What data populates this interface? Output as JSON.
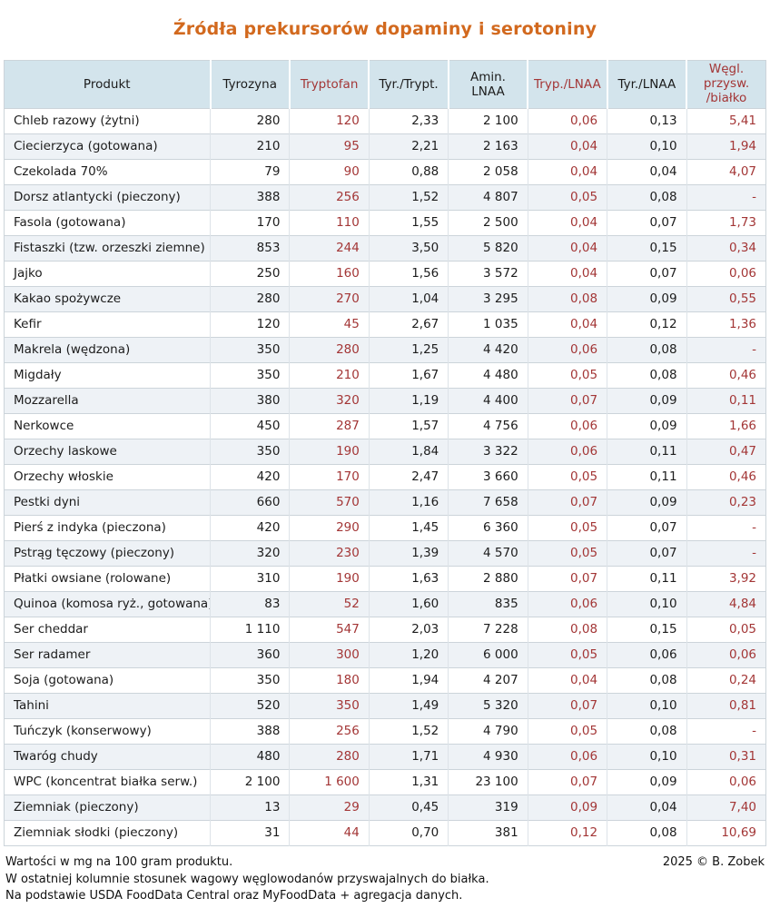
{
  "title": "Źródła prekursorów dopaminy i serotoniny",
  "chart_data": {
    "type": "table",
    "title": "Źródła prekursorów dopaminy i serotoniny",
    "columns": [
      "Produkt",
      "Tyrozyna",
      "Tryptofan",
      "Tyr./Trypt.",
      "Amin. LNAA",
      "Tryp./LNAA",
      "Tyr./LNAA",
      "Węgl.\nprzysw.\n/białko"
    ],
    "red_column_indices": [
      2,
      5,
      7
    ],
    "units_note": "mg na 100 g produktu",
    "rows": [
      [
        "Chleb razowy (żytni)",
        "280",
        "120",
        "2,33",
        "2 100",
        "0,06",
        "0,13",
        "5,41"
      ],
      [
        "Ciecierzyca (gotowana)",
        "210",
        "95",
        "2,21",
        "2 163",
        "0,04",
        "0,10",
        "1,94"
      ],
      [
        "Czekolada 70%",
        "79",
        "90",
        "0,88",
        "2 058",
        "0,04",
        "0,04",
        "4,07"
      ],
      [
        "Dorsz atlantycki (pieczony)",
        "388",
        "256",
        "1,52",
        "4 807",
        "0,05",
        "0,08",
        "-"
      ],
      [
        "Fasola (gotowana)",
        "170",
        "110",
        "1,55",
        "2 500",
        "0,04",
        "0,07",
        "1,73"
      ],
      [
        "Fistaszki (tzw. orzeszki ziemne)",
        "853",
        "244",
        "3,50",
        "5 820",
        "0,04",
        "0,15",
        "0,34"
      ],
      [
        "Jajko",
        "250",
        "160",
        "1,56",
        "3 572",
        "0,04",
        "0,07",
        "0,06"
      ],
      [
        "Kakao spożywcze",
        "280",
        "270",
        "1,04",
        "3 295",
        "0,08",
        "0,09",
        "0,55"
      ],
      [
        "Kefir",
        "120",
        "45",
        "2,67",
        "1 035",
        "0,04",
        "0,12",
        "1,36"
      ],
      [
        "Makrela (wędzona)",
        "350",
        "280",
        "1,25",
        "4 420",
        "0,06",
        "0,08",
        "-"
      ],
      [
        "Migdały",
        "350",
        "210",
        "1,67",
        "4 480",
        "0,05",
        "0,08",
        "0,46"
      ],
      [
        "Mozzarella",
        "380",
        "320",
        "1,19",
        "4 400",
        "0,07",
        "0,09",
        "0,11"
      ],
      [
        "Nerkowce",
        "450",
        "287",
        "1,57",
        "4 756",
        "0,06",
        "0,09",
        "1,66"
      ],
      [
        "Orzechy laskowe",
        "350",
        "190",
        "1,84",
        "3 322",
        "0,06",
        "0,11",
        "0,47"
      ],
      [
        "Orzechy włoskie",
        "420",
        "170",
        "2,47",
        "3 660",
        "0,05",
        "0,11",
        "0,46"
      ],
      [
        "Pestki dyni",
        "660",
        "570",
        "1,16",
        "7 658",
        "0,07",
        "0,09",
        "0,23"
      ],
      [
        "Pierś z indyka (pieczona)",
        "420",
        "290",
        "1,45",
        "6 360",
        "0,05",
        "0,07",
        "-"
      ],
      [
        "Pstrąg tęczowy (pieczony)",
        "320",
        "230",
        "1,39",
        "4 570",
        "0,05",
        "0,07",
        "-"
      ],
      [
        "Płatki owsiane (rolowane)",
        "310",
        "190",
        "1,63",
        "2 880",
        "0,07",
        "0,11",
        "3,92"
      ],
      [
        "Quinoa (komosa ryż., gotowana)",
        "83",
        "52",
        "1,60",
        "835",
        "0,06",
        "0,10",
        "4,84"
      ],
      [
        "Ser cheddar",
        "1 110",
        "547",
        "2,03",
        "7 228",
        "0,08",
        "0,15",
        "0,05"
      ],
      [
        "Ser radamer",
        "360",
        "300",
        "1,20",
        "6 000",
        "0,05",
        "0,06",
        "0,06"
      ],
      [
        "Soja (gotowana)",
        "350",
        "180",
        "1,94",
        "4 207",
        "0,04",
        "0,08",
        "0,24"
      ],
      [
        "Tahini",
        "520",
        "350",
        "1,49",
        "5 320",
        "0,07",
        "0,10",
        "0,81"
      ],
      [
        "Tuńczyk (konserwowy)",
        "388",
        "256",
        "1,52",
        "4 790",
        "0,05",
        "0,08",
        "-"
      ],
      [
        "Twaróg chudy",
        "480",
        "280",
        "1,71",
        "4 930",
        "0,06",
        "0,10",
        "0,31"
      ],
      [
        "WPC (koncentrat białka serw.)",
        "2 100",
        "1 600",
        "1,31",
        "23 100",
        "0,07",
        "0,09",
        "0,06"
      ],
      [
        "Ziemniak (pieczony)",
        "13",
        "29",
        "0,45",
        "319",
        "0,09",
        "0,04",
        "7,40"
      ],
      [
        "Ziemniak słodki (pieczony)",
        "31",
        "44",
        "0,70",
        "381",
        "0,12",
        "0,08",
        "10,69"
      ]
    ],
    "layout_hints": {
      "striped_rows": true,
      "header_background": "#d3e4ec",
      "alt_row_background": "#eef2f6",
      "grid": true
    }
  },
  "footer": {
    "notes": [
      "Wartości w mg na 100 gram produktu.",
      "W ostatniej kolumnie stosunek wagowy węglowodanów przyswajalnych do białka.",
      "Na podstawie USDA FoodData Central oraz MyFoodData + agregacja danych."
    ],
    "copyright": "2025 © B. Zobek"
  },
  "colors": {
    "title_orange": "#d2691e",
    "accent_red": "#a33636",
    "header_background": "#d3e4ec",
    "alt_row_background": "#eef2f6",
    "grid_line": "#ccd4da",
    "text": "#1c1c1c"
  }
}
